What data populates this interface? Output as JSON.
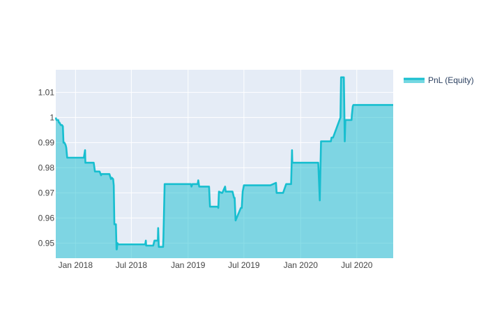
{
  "chart_data": {
    "type": "area",
    "title": "",
    "xlabel": "",
    "ylabel": "",
    "grid": true,
    "legend_placement": "top-right",
    "xlim": [
      "2017-10-29",
      "2020-10-27"
    ],
    "ylim": [
      0.944,
      1.019
    ],
    "x_ticks": [
      {
        "date": "2018-01-01",
        "label": "Jan 2018"
      },
      {
        "date": "2018-07-01",
        "label": "Jul 2018"
      },
      {
        "date": "2019-01-01",
        "label": "Jan 2019"
      },
      {
        "date": "2019-07-01",
        "label": "Jul 2019"
      },
      {
        "date": "2020-01-01",
        "label": "Jan 2020"
      },
      {
        "date": "2020-07-01",
        "label": "Jul 2020"
      }
    ],
    "y_ticks": [
      {
        "value": 0.95,
        "label": "0.95"
      },
      {
        "value": 0.96,
        "label": "0.96"
      },
      {
        "value": 0.97,
        "label": "0.97"
      },
      {
        "value": 0.98,
        "label": "0.98"
      },
      {
        "value": 0.99,
        "label": "0.99"
      },
      {
        "value": 1.0,
        "label": "1"
      },
      {
        "value": 1.01,
        "label": "1.01"
      }
    ],
    "colors": {
      "background": "#e5ecf6",
      "grid": "#ffffff",
      "line": "#17becf",
      "fill": "#17becf",
      "tick_text": "#444444"
    },
    "series": [
      {
        "name": "PnL (Equity)",
        "x": [
          "2017-10-29",
          "2017-10-31",
          "2017-11-01",
          "2017-11-06",
          "2017-11-08",
          "2017-11-10",
          "2017-11-14",
          "2017-11-18",
          "2017-11-21",
          "2017-11-23",
          "2017-11-26",
          "2017-11-30",
          "2017-12-02",
          "2017-12-05",
          "2018-01-28",
          "2018-02-01",
          "2018-02-02",
          "2018-03-01",
          "2018-03-05",
          "2018-03-20",
          "2018-03-25",
          "2018-03-26",
          "2018-04-18",
          "2018-04-21",
          "2018-04-26",
          "2018-04-29",
          "2018-05-03",
          "2018-05-05",
          "2018-05-07",
          "2018-05-12",
          "2018-05-14",
          "2018-05-15",
          "2018-05-17",
          "2018-05-20",
          "2018-08-15",
          "2018-08-17",
          "2018-08-18",
          "2018-09-10",
          "2018-09-14",
          "2018-09-25",
          "2018-09-26",
          "2018-09-28",
          "2018-10-12",
          "2018-10-13",
          "2018-10-17",
          "2018-10-20",
          "2019-01-10",
          "2019-01-12",
          "2019-01-15",
          "2019-02-01",
          "2019-02-03",
          "2019-02-06",
          "2019-02-08",
          "2019-03-10",
          "2019-03-13",
          "2019-04-08",
          "2019-04-09",
          "2019-04-11",
          "2019-04-20",
          "2019-04-22",
          "2019-05-01",
          "2019-05-03",
          "2019-05-05",
          "2019-05-07",
          "2019-05-25",
          "2019-05-30",
          "2019-06-01",
          "2019-06-04",
          "2019-06-21",
          "2019-06-24",
          "2019-06-27",
          "2019-07-01",
          "2019-09-15",
          "2019-09-25",
          "2019-10-13",
          "2019-10-15",
          "2019-10-17",
          "2019-10-19",
          "2019-10-30",
          "2019-11-02",
          "2019-11-05",
          "2019-11-15",
          "2019-12-01",
          "2019-12-04",
          "2019-12-05",
          "2019-12-07",
          "2020-02-10",
          "2020-02-15",
          "2020-02-22",
          "2020-02-25",
          "2020-02-27",
          "2020-03-03",
          "2020-03-07",
          "2020-04-05",
          "2020-04-07",
          "2020-04-08",
          "2020-04-10",
          "2020-04-13",
          "2020-04-15",
          "2020-05-09",
          "2020-05-11",
          "2020-05-20",
          "2020-05-21",
          "2020-05-23",
          "2020-05-25",
          "2020-06-04",
          "2020-06-06",
          "2020-06-07",
          "2020-06-08",
          "2020-06-10",
          "2020-06-12",
          "2020-06-13",
          "2020-06-14",
          "2020-06-15",
          "2020-06-18",
          "2020-06-20",
          "2020-07-28",
          "2020-08-01",
          "2020-08-03",
          "2020-10-27"
        ],
        "y": [
          1.0,
          0.999,
          0.999,
          0.999,
          0.998,
          0.998,
          0.997,
          0.997,
          0.9965,
          0.99,
          0.99,
          0.989,
          0.988,
          0.984,
          0.984,
          0.987,
          0.982,
          0.982,
          0.9785,
          0.9785,
          0.977,
          0.9775,
          0.9775,
          0.9775,
          0.9755,
          0.976,
          0.9755,
          0.973,
          0.9575,
          0.9575,
          0.9475,
          0.9475,
          0.95,
          0.9495,
          0.9495,
          0.951,
          0.949,
          0.949,
          0.951,
          0.951,
          0.956,
          0.9485,
          0.9485,
          0.952,
          0.9735,
          0.9735,
          0.9735,
          0.9725,
          0.9735,
          0.9735,
          0.975,
          0.9725,
          0.9725,
          0.9725,
          0.9645,
          0.9645,
          0.964,
          0.9705,
          0.97,
          0.97,
          0.9725,
          0.9705,
          0.9705,
          0.9705,
          0.9705,
          0.968,
          0.968,
          0.959,
          0.964,
          0.964,
          0.9705,
          0.973,
          0.973,
          0.973,
          0.974,
          0.97,
          0.97,
          0.97,
          0.97,
          0.97,
          0.97,
          0.9735,
          0.9735,
          0.987,
          0.982,
          0.982,
          0.982,
          0.982,
          0.982,
          0.982,
          0.982,
          0.967,
          0.9905,
          0.9905,
          0.9905,
          0.9905,
          0.992,
          0.992,
          0.992,
          1.0,
          1.016,
          1.016,
          1.008,
          0.9905,
          0.999,
          0.999,
          0.999,
          0.999,
          0.999,
          0.999,
          0.999,
          0.999,
          0.999,
          1.001,
          1.0045,
          1.005,
          1.005,
          1.005,
          1.005,
          1.005
        ]
      }
    ]
  },
  "legend": {
    "label": "PnL (Equity)"
  }
}
